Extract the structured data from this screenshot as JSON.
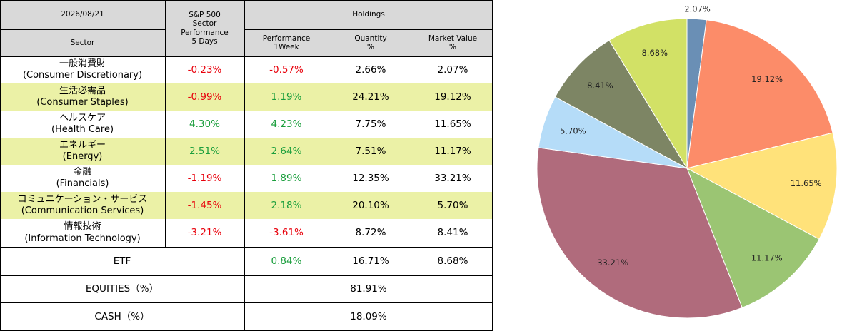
{
  "table": {
    "date": "2026/08/21",
    "col_sector": "Sector",
    "col_sp500": "S&P 500\nSector\nPerformance\n5 Days",
    "col_holdings": "Holdings",
    "col_perf": "Performance\n1Week",
    "col_qty": "Quantity\n%",
    "col_mv": "Market Value\n%",
    "rows": [
      {
        "jp": "一般消費財",
        "en": "(Consumer Discretionary)",
        "sp": "-0.23%",
        "perf": "-0.57%",
        "qty": "2.66%",
        "mv": "2.07%",
        "sp_color": "red",
        "perf_color": "red",
        "highlight": false
      },
      {
        "jp": "生活必需品",
        "en": "(Consumer Staples)",
        "sp": "-0.99%",
        "perf": "1.19%",
        "qty": "24.21%",
        "mv": "19.12%",
        "sp_color": "red",
        "perf_color": "green",
        "highlight": true
      },
      {
        "jp": "ヘルスケア",
        "en": "(Health Care)",
        "sp": "4.30%",
        "perf": "4.23%",
        "qty": "7.75%",
        "mv": "11.65%",
        "sp_color": "green",
        "perf_color": "green",
        "highlight": false
      },
      {
        "jp": "エネルギー",
        "en": "(Energy)",
        "sp": "2.51%",
        "perf": "2.64%",
        "qty": "7.51%",
        "mv": "11.17%",
        "sp_color": "green",
        "perf_color": "green",
        "highlight": true
      },
      {
        "jp": "金融",
        "en": "(Financials)",
        "sp": "-1.19%",
        "perf": "1.89%",
        "qty": "12.35%",
        "mv": "33.21%",
        "sp_color": "red",
        "perf_color": "green",
        "highlight": false
      },
      {
        "jp": "コミュニケーション・サービス",
        "en": "(Communication Services)",
        "sp": "-1.45%",
        "perf": "2.18%",
        "qty": "20.10%",
        "mv": "5.70%",
        "sp_color": "red",
        "perf_color": "green",
        "highlight": true
      },
      {
        "jp": "情報技術",
        "en": "(Information Technology)",
        "sp": "-3.21%",
        "perf": "-3.61%",
        "qty": "8.72%",
        "mv": "8.41%",
        "sp_color": "red",
        "perf_color": "red",
        "highlight": false
      }
    ],
    "etf": {
      "label": "ETF",
      "perf": "0.84%",
      "qty": "16.71%",
      "mv": "8.68%",
      "perf_color": "green"
    },
    "equities": {
      "label": "EQUITIES（%）",
      "value": "81.91%"
    },
    "cash": {
      "label": "CASH（%）",
      "value": "18.09%"
    },
    "highlight_color": "#ebf1a6",
    "header_color": "#d9d9d9",
    "positive_color": "#1a9e3c",
    "negative_color": "#e8000b"
  },
  "chart_data": {
    "type": "pie",
    "start": "top, clockwise",
    "values": [
      2.07,
      19.12,
      11.65,
      11.17,
      33.21,
      5.7,
      8.41,
      8.68
    ],
    "labels": [
      "2.07%",
      "19.12%",
      "11.65%",
      "11.17%",
      "33.21%",
      "5.70%",
      "8.41%",
      "8.68%"
    ],
    "colors": [
      "#6a8fb5",
      "#fc8c69",
      "#ffe27a",
      "#9bc573",
      "#b06b7c",
      "#b5dcf8",
      "#7d8564",
      "#d2e166"
    ]
  }
}
